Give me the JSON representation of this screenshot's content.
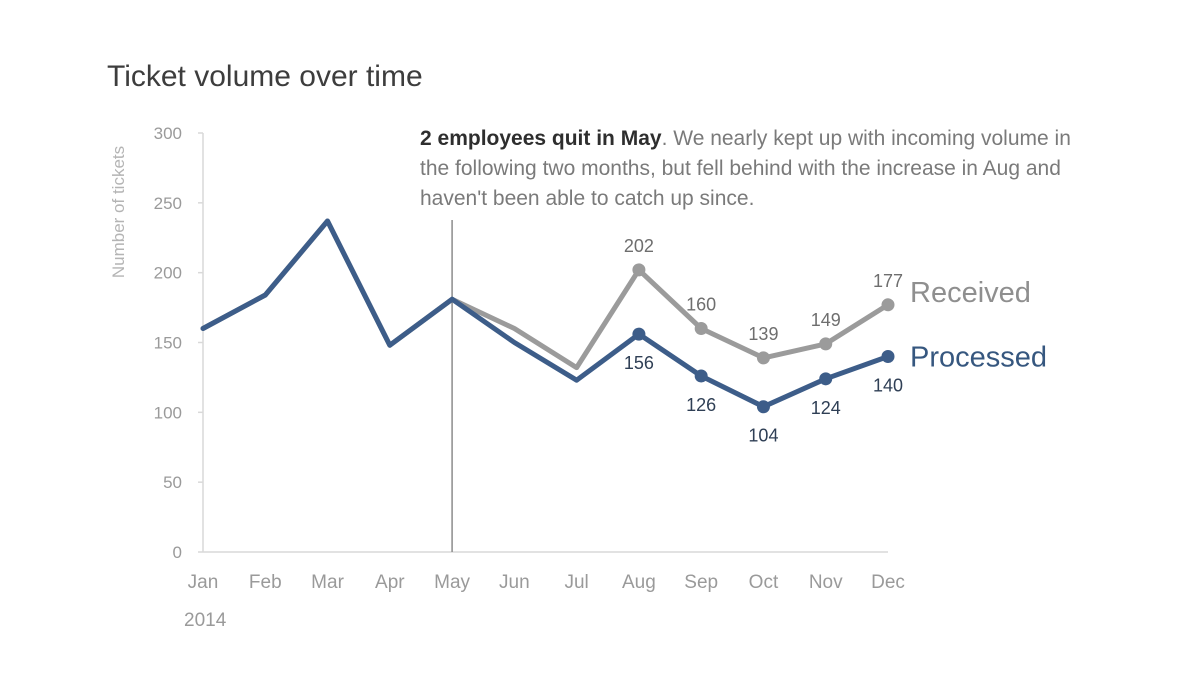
{
  "chart_data": {
    "type": "line",
    "title": "Ticket volume over time",
    "ylabel": "Number of tickets",
    "xlabel": "",
    "year_label": "2014",
    "ylim": [
      0,
      300
    ],
    "yticks": [
      0,
      50,
      100,
      150,
      200,
      250,
      300
    ],
    "categories": [
      "Jan",
      "Feb",
      "Mar",
      "Apr",
      "May",
      "Jun",
      "Jul",
      "Aug",
      "Sep",
      "Oct",
      "Nov",
      "Dec"
    ],
    "grid": false,
    "legend": "direct labels at line ends (right)",
    "series": [
      {
        "name": "Received",
        "color": "#9b9b9b",
        "values": [
          160,
          184,
          237,
          148,
          181,
          160,
          132,
          202,
          160,
          139,
          149,
          177
        ],
        "labeled_from_index": 7
      },
      {
        "name": "Processed",
        "color": "#3d5d89",
        "values": [
          160,
          184,
          237,
          148,
          181,
          150,
          123,
          156,
          126,
          104,
          124,
          140
        ],
        "labeled_from_index": 7
      }
    ],
    "annotation": {
      "bold": "2 employees quit in May",
      "text": ". We nearly kept up with incoming volume in the following two months, but fell behind with the increase in Aug and haven't been able to catch up since.",
      "marker_category": "May"
    }
  }
}
